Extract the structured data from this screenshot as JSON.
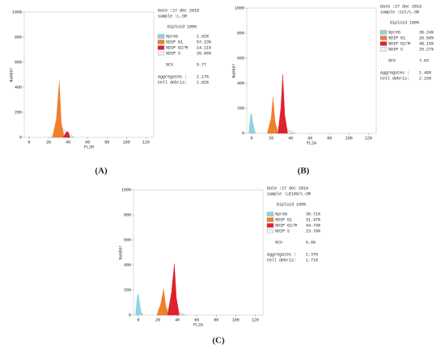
{
  "chart_data": [
    {
      "type": "area",
      "caption": "(A)",
      "xlabel": "FL2H",
      "ylabel": "Number",
      "xlim": [
        -5,
        128
      ],
      "ylim": [
        0,
        1000
      ],
      "xticks": [
        0,
        20,
        40,
        60,
        80,
        100,
        120
      ],
      "yticks": [
        0,
        200,
        400,
        600,
        800,
        1000
      ],
      "date": "Date :27 dec 2019",
      "sample": "sample :L-SR",
      "diploid": "Diploid 100%",
      "cv_label": "%CV",
      "cv": "5.77",
      "aggregates_label": "Aggregates :",
      "aggregates": "2.17%",
      "debris_label": "Cell debris:",
      "debris": "1.82%",
      "series": [
        {
          "name": "%preG",
          "stat": "1.92%",
          "color": "#8fd3e0",
          "x": [
            -1,
            0,
            1
          ],
          "values": [
            0,
            10,
            0
          ]
        },
        {
          "name": "%DIP G1",
          "stat": "57.23%",
          "color": "#f07f2a",
          "x": [
            24,
            28,
            31,
            33,
            36
          ],
          "values": [
            0,
            150,
            450,
            120,
            0
          ]
        },
        {
          "name": "%DIP G2/M",
          "stat": "14.11%",
          "color": "#e0202a",
          "x": [
            35,
            38,
            40,
            42
          ],
          "values": [
            0,
            40,
            45,
            0
          ]
        },
        {
          "name": "%DIP S",
          "stat": "26.66%",
          "color": "#ffffff",
          "x": [
            22,
            28,
            34,
            40,
            46
          ],
          "values": [
            0,
            50,
            70,
            40,
            0
          ]
        }
      ]
    },
    {
      "type": "area",
      "caption": "(B)",
      "xlabel": "FL2A",
      "ylabel": "Number",
      "xlim": [
        -5,
        128
      ],
      "ylim": [
        0,
        1000
      ],
      "xticks": [
        0,
        20,
        40,
        60,
        80,
        100,
        120
      ],
      "yticks": [
        0,
        200,
        400,
        600,
        800,
        1000
      ],
      "date": "Date :27 dec 2019",
      "sample": "sample :Col/L-SR",
      "diploid": "Diploid 100%",
      "cv_label": "%CV",
      "cv": "7.03",
      "aggregates_label": "Aggregates :",
      "aggregates": "1.49%",
      "debris_label": "Cell debris:",
      "debris": "2.15%",
      "series": [
        {
          "name": "%preG",
          "stat": "36.24%",
          "color": "#8fd3e0",
          "x": [
            -3,
            -1,
            0,
            1,
            3,
            5
          ],
          "values": [
            0,
            150,
            160,
            100,
            20,
            0
          ]
        },
        {
          "name": "%DIP G1",
          "stat": "26.58%",
          "color": "#f07f2a",
          "x": [
            16,
            20,
            22,
            24,
            27
          ],
          "values": [
            0,
            120,
            290,
            100,
            0
          ]
        },
        {
          "name": "%DIP G2/M",
          "stat": "48.15%",
          "color": "#e0202a",
          "x": [
            27,
            30,
            32,
            34,
            37
          ],
          "values": [
            0,
            200,
            470,
            150,
            0
          ]
        },
        {
          "name": "%DIP S",
          "stat": "25.27%",
          "color": "#ffffff",
          "x": [
            18,
            25,
            30,
            36,
            45
          ],
          "values": [
            0,
            40,
            60,
            30,
            0
          ]
        }
      ]
    },
    {
      "type": "area",
      "caption": "(C)",
      "xlabel": "FL2A",
      "ylabel": "Number",
      "xlim": [
        -5,
        128
      ],
      "ylim": [
        0,
        1000
      ],
      "xticks": [
        0,
        20,
        40,
        60,
        80,
        100,
        120
      ],
      "yticks": [
        0,
        200,
        400,
        600,
        800,
        1000
      ],
      "date": "Date :27 dec 2019",
      "sample": "sample :LE109/L-SR",
      "diploid": "Diploid 100%",
      "cv_label": "%CV",
      "cv": "5.99",
      "aggregates_label": "Aggregates :",
      "aggregates": "1.37%",
      "debris_label": "Cell debris:",
      "debris": "1.71%",
      "series": [
        {
          "name": "%preG",
          "stat": "30.71%",
          "color": "#8fd3e0",
          "x": [
            -3,
            -1,
            0,
            1,
            3,
            5
          ],
          "values": [
            0,
            160,
            170,
            110,
            20,
            0
          ]
        },
        {
          "name": "%DIP G1",
          "stat": "31.47%",
          "color": "#f07f2a",
          "x": [
            19,
            23,
            26,
            28,
            31
          ],
          "values": [
            0,
            90,
            210,
            80,
            0
          ]
        },
        {
          "name": "%DIP G2/M",
          "stat": "44.74%",
          "color": "#e0202a",
          "x": [
            30,
            34,
            37,
            39,
            42
          ],
          "values": [
            0,
            180,
            410,
            140,
            0
          ]
        },
        {
          "name": "%DIP S",
          "stat": "23.79%",
          "color": "#ffffff",
          "x": [
            22,
            28,
            33,
            39,
            48
          ],
          "values": [
            0,
            40,
            60,
            30,
            0
          ]
        }
      ]
    }
  ]
}
